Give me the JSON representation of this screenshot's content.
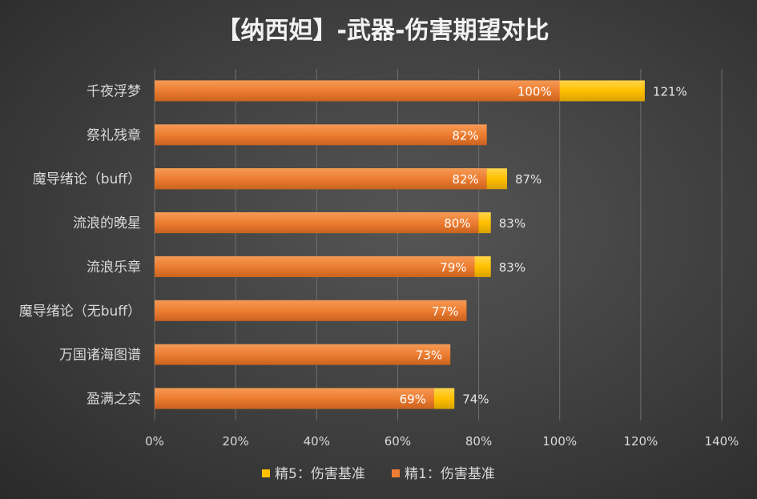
{
  "chart_data": {
    "type": "bar",
    "orientation": "horizontal",
    "title": "【纳西妲】-武器-伤害期望对比",
    "categories": [
      "千夜浮梦",
      "祭礼残章",
      "魔导绪论（buff）",
      "流浪的晚星",
      "流浪乐章",
      "魔导绪论（无buff）",
      "万国诸海图谱",
      "盈满之实"
    ],
    "series": [
      {
        "name": "精1：伤害基准",
        "color": "#ed7d31",
        "values": [
          100,
          82,
          82,
          80,
          79,
          77,
          73,
          69
        ],
        "labels": [
          "100%",
          "82%",
          "82%",
          "80%",
          "79%",
          "77%",
          "73%",
          "69%"
        ]
      },
      {
        "name": "精5：伤害基准",
        "color": "#ffc000",
        "values": [
          121,
          null,
          87,
          83,
          83,
          null,
          null,
          74
        ],
        "labels": [
          "121%",
          null,
          "87%",
          "83%",
          "83%",
          null,
          null,
          "74%"
        ]
      }
    ],
    "xlim": [
      0,
      140
    ],
    "xticks": [
      "0%",
      "20%",
      "40%",
      "60%",
      "80%",
      "100%",
      "120%",
      "140%"
    ],
    "grid": true,
    "legend_position": "bottom",
    "legend": [
      "精5：伤害基准",
      "精1：伤害基准"
    ]
  }
}
